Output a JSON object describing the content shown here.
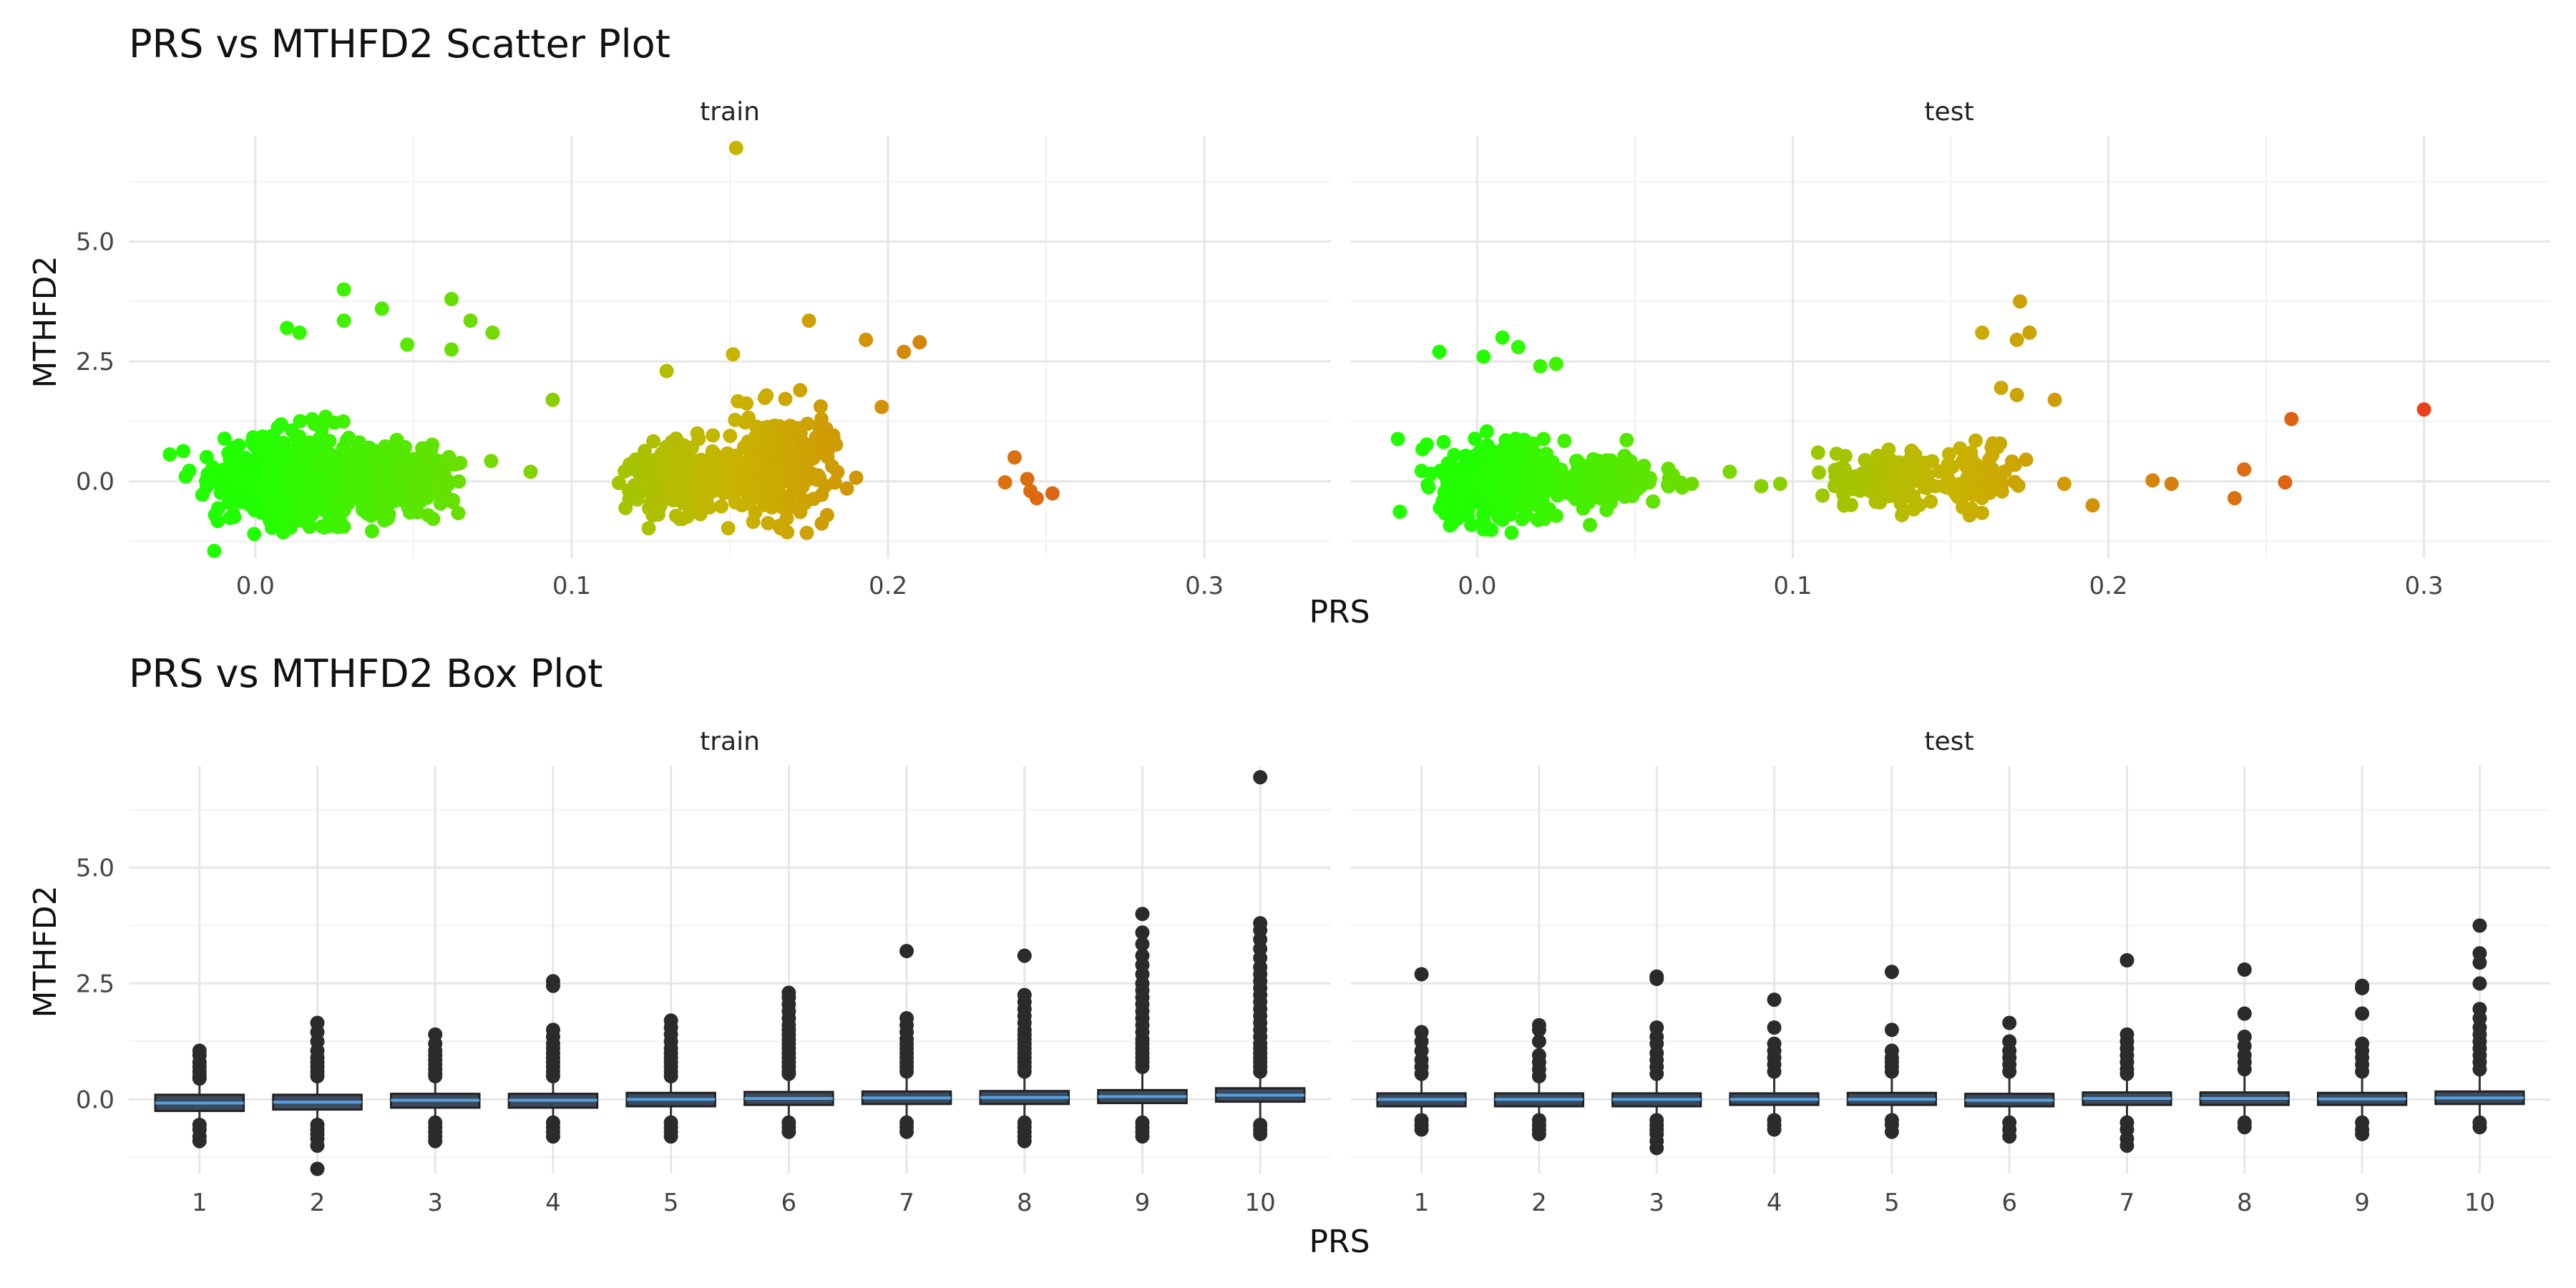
{
  "chart_data": [
    {
      "type": "scatter",
      "title": "PRS vs MTHFD2 Scatter Plot",
      "xlabel": "PRS",
      "ylabel": "MTHFD2",
      "xlim": [
        -0.04,
        0.34
      ],
      "ylim": [
        -1.6,
        7.2
      ],
      "x_ticks": [
        0.0,
        0.1,
        0.2,
        0.3
      ],
      "x_tick_labels": [
        "0.0",
        "0.1",
        "0.2",
        "0.3"
      ],
      "y_ticks": [
        0.0,
        2.5,
        5.0
      ],
      "y_tick_labels": [
        "0.0",
        "2.5",
        "5.0"
      ],
      "grid": true,
      "legend": "none",
      "color_scale": {
        "low": "#22ff00",
        "mid": "#c8b400",
        "high": "#e8421a",
        "range": [
          0.0,
          0.3
        ],
        "mapped_to": "PRS"
      },
      "facets": [
        {
          "label": "train",
          "clusters": [
            {
              "x_center": 0.015,
              "x_spread": 0.018,
              "y_center": 0.0,
              "y_spread": 0.45,
              "n": 700
            },
            {
              "x_center": 0.045,
              "x_spread": 0.012,
              "y_center": 0.05,
              "y_spread": 0.3,
              "n": 280
            },
            {
              "x_center": 0.135,
              "x_spread": 0.012,
              "y_center": 0.05,
              "y_spread": 0.35,
              "n": 260
            },
            {
              "x_center": 0.165,
              "x_spread": 0.012,
              "y_center": 0.3,
              "y_spread": 0.55,
              "n": 260
            }
          ],
          "points": [
            {
              "x": 0.152,
              "y": 6.95
            },
            {
              "x": 0.028,
              "y": 4.0
            },
            {
              "x": 0.04,
              "y": 3.6
            },
            {
              "x": 0.062,
              "y": 3.8
            },
            {
              "x": 0.068,
              "y": 3.35
            },
            {
              "x": 0.075,
              "y": 3.1
            },
            {
              "x": 0.01,
              "y": 3.2
            },
            {
              "x": 0.014,
              "y": 3.1
            },
            {
              "x": 0.028,
              "y": 3.35
            },
            {
              "x": 0.048,
              "y": 2.85
            },
            {
              "x": 0.062,
              "y": 2.75
            },
            {
              "x": 0.094,
              "y": 1.7
            },
            {
              "x": 0.175,
              "y": 3.35
            },
            {
              "x": 0.193,
              "y": 2.95
            },
            {
              "x": 0.21,
              "y": 2.9
            },
            {
              "x": 0.205,
              "y": 2.7
            },
            {
              "x": 0.198,
              "y": 1.55
            },
            {
              "x": 0.187,
              "y": -0.15
            },
            {
              "x": 0.151,
              "y": 2.65
            },
            {
              "x": 0.13,
              "y": 2.3
            },
            {
              "x": -0.013,
              "y": -1.45
            },
            {
              "x": -0.022,
              "y": 0.1
            },
            {
              "x": 0.087,
              "y": 0.2
            },
            {
              "x": 0.24,
              "y": 0.5
            },
            {
              "x": 0.237,
              "y": -0.02
            },
            {
              "x": 0.244,
              "y": 0.05
            },
            {
              "x": 0.245,
              "y": -0.2
            },
            {
              "x": 0.247,
              "y": -0.35
            },
            {
              "x": 0.252,
              "y": -0.25
            }
          ]
        },
        {
          "label": "test",
          "clusters": [
            {
              "x_center": 0.008,
              "x_spread": 0.014,
              "y_center": 0.0,
              "y_spread": 0.42,
              "n": 420
            },
            {
              "x_center": 0.04,
              "x_spread": 0.012,
              "y_center": 0.02,
              "y_spread": 0.22,
              "n": 170
            },
            {
              "x_center": 0.13,
              "x_spread": 0.011,
              "y_center": 0.05,
              "y_spread": 0.3,
              "n": 150
            },
            {
              "x_center": 0.16,
              "x_spread": 0.008,
              "y_center": 0.1,
              "y_spread": 0.4,
              "n": 60
            }
          ],
          "points": [
            {
              "x": -0.012,
              "y": 2.7
            },
            {
              "x": 0.002,
              "y": 2.6
            },
            {
              "x": 0.008,
              "y": 3.0
            },
            {
              "x": 0.013,
              "y": 2.8
            },
            {
              "x": 0.02,
              "y": 2.4
            },
            {
              "x": 0.025,
              "y": 2.45
            },
            {
              "x": 0.172,
              "y": 3.75
            },
            {
              "x": 0.175,
              "y": 3.1
            },
            {
              "x": 0.16,
              "y": 3.1
            },
            {
              "x": 0.171,
              "y": 2.95
            },
            {
              "x": 0.166,
              "y": 1.95
            },
            {
              "x": 0.171,
              "y": 1.8
            },
            {
              "x": 0.183,
              "y": 1.7
            },
            {
              "x": 0.08,
              "y": 0.2
            },
            {
              "x": 0.096,
              "y": -0.05
            },
            {
              "x": 0.09,
              "y": -0.1
            },
            {
              "x": 0.068,
              "y": -0.05
            },
            {
              "x": 0.108,
              "y": 0.6
            },
            {
              "x": 0.195,
              "y": -0.5
            },
            {
              "x": 0.186,
              "y": -0.05
            },
            {
              "x": 0.214,
              "y": 0.02
            },
            {
              "x": 0.22,
              "y": -0.05
            },
            {
              "x": 0.24,
              "y": -0.35
            },
            {
              "x": 0.243,
              "y": 0.25
            },
            {
              "x": 0.256,
              "y": -0.02
            },
            {
              "x": 0.258,
              "y": 1.3
            },
            {
              "x": 0.3,
              "y": 1.5
            },
            {
              "x": 0.002,
              "y": -1.0
            },
            {
              "x": 0.008,
              "y": -0.8
            }
          ]
        }
      ]
    },
    {
      "type": "box",
      "title": "PRS vs MTHFD2 Box Plot",
      "xlabel": "PRS",
      "ylabel": "MTHFD2",
      "ylim": [
        -1.6,
        7.2
      ],
      "y_ticks": [
        0.0,
        2.5,
        5.0
      ],
      "y_tick_labels": [
        "0.0",
        "2.5",
        "5.0"
      ],
      "categories": [
        "1",
        "2",
        "3",
        "4",
        "5",
        "6",
        "7",
        "8",
        "9",
        "10"
      ],
      "grid": true,
      "legend": "none",
      "box_fill": "#3b4a5c",
      "median_color": "#56a0e0",
      "outlier_color": "#2b2b2b",
      "facets": [
        {
          "label": "train",
          "boxes": [
            {
              "q1": -0.25,
              "median": -0.08,
              "q3": 0.1,
              "outliers": [
                1.05,
                0.95,
                0.8,
                0.7,
                0.6,
                0.5,
                0.45,
                -0.55,
                -0.65,
                -0.8,
                -0.9
              ]
            },
            {
              "q1": -0.22,
              "median": -0.06,
              "q3": 0.1,
              "outliers": [
                1.65,
                1.45,
                1.25,
                1.05,
                0.9,
                0.8,
                0.7,
                0.6,
                0.5,
                -0.55,
                -0.65,
                -0.75,
                -0.85,
                -1.0,
                -1.5
              ]
            },
            {
              "q1": -0.18,
              "median": -0.02,
              "q3": 0.12,
              "outliers": [
                1.4,
                1.2,
                1.05,
                0.95,
                0.85,
                0.75,
                0.65,
                0.55,
                0.5,
                -0.5,
                -0.6,
                -0.7,
                -0.8,
                -0.9
              ]
            },
            {
              "q1": -0.18,
              "median": -0.02,
              "q3": 0.12,
              "outliers": [
                2.55,
                2.45,
                1.5,
                1.35,
                1.2,
                1.1,
                1.0,
                0.9,
                0.8,
                0.7,
                0.6,
                0.5,
                -0.5,
                -0.6,
                -0.7,
                -0.8
              ]
            },
            {
              "q1": -0.15,
              "median": 0.0,
              "q3": 0.14,
              "outliers": [
                1.7,
                1.55,
                1.4,
                1.25,
                1.1,
                1.0,
                0.9,
                0.8,
                0.7,
                0.6,
                0.5,
                -0.5,
                -0.6,
                -0.7,
                -0.8
              ]
            },
            {
              "q1": -0.12,
              "median": 0.02,
              "q3": 0.16,
              "outliers": [
                2.3,
                2.2,
                2.05,
                1.9,
                1.75,
                1.6,
                1.5,
                1.4,
                1.3,
                1.2,
                1.1,
                1.0,
                0.9,
                0.8,
                0.7,
                0.6,
                0.55,
                -0.5,
                -0.6,
                -0.7
              ]
            },
            {
              "q1": -0.1,
              "median": 0.03,
              "q3": 0.17,
              "outliers": [
                3.2,
                1.75,
                1.6,
                1.45,
                1.3,
                1.2,
                1.1,
                1.0,
                0.9,
                0.8,
                0.7,
                0.6,
                -0.5,
                -0.6,
                -0.7
              ]
            },
            {
              "q1": -0.1,
              "median": 0.04,
              "q3": 0.18,
              "outliers": [
                3.1,
                2.25,
                2.1,
                1.95,
                1.8,
                1.65,
                1.5,
                1.4,
                1.3,
                1.2,
                1.1,
                1.0,
                0.9,
                0.8,
                0.7,
                0.6,
                -0.5,
                -0.6,
                -0.7,
                -0.8,
                -0.9
              ]
            },
            {
              "q1": -0.08,
              "median": 0.06,
              "q3": 0.2,
              "outliers": [
                4.0,
                3.6,
                3.35,
                3.1,
                2.9,
                2.7,
                2.5,
                2.35,
                2.2,
                2.05,
                1.9,
                1.75,
                1.6,
                1.45,
                1.3,
                1.2,
                1.1,
                1.0,
                0.9,
                0.8,
                0.7,
                -0.5,
                -0.6,
                -0.7,
                -0.8
              ]
            },
            {
              "q1": -0.05,
              "median": 0.09,
              "q3": 0.24,
              "outliers": [
                6.95,
                3.8,
                3.65,
                3.45,
                3.25,
                3.05,
                2.85,
                2.7,
                2.55,
                2.4,
                2.25,
                2.1,
                1.95,
                1.8,
                1.65,
                1.5,
                1.35,
                1.2,
                1.1,
                1.0,
                0.9,
                0.8,
                0.7,
                0.6,
                -0.55,
                -0.65,
                -0.75
              ]
            }
          ]
        },
        {
          "label": "test",
          "boxes": [
            {
              "q1": -0.15,
              "median": 0.0,
              "q3": 0.13,
              "outliers": [
                2.7,
                1.45,
                1.25,
                1.05,
                0.85,
                0.7,
                0.55,
                -0.45,
                -0.55,
                -0.65
              ]
            },
            {
              "q1": -0.15,
              "median": 0.0,
              "q3": 0.13,
              "outliers": [
                1.6,
                1.5,
                1.25,
                0.95,
                0.8,
                0.65,
                0.5,
                -0.45,
                -0.55,
                -0.65,
                -0.75
              ]
            },
            {
              "q1": -0.15,
              "median": 0.0,
              "q3": 0.13,
              "outliers": [
                2.65,
                2.6,
                1.55,
                1.35,
                1.2,
                1.0,
                0.85,
                0.7,
                0.55,
                -0.45,
                -0.55,
                -0.65,
                -0.75,
                -0.9,
                -1.05
              ]
            },
            {
              "q1": -0.12,
              "median": 0.0,
              "q3": 0.13,
              "outliers": [
                2.15,
                1.55,
                1.2,
                1.05,
                0.9,
                0.75,
                0.6,
                -0.45,
                -0.55,
                -0.65
              ]
            },
            {
              "q1": -0.12,
              "median": 0.0,
              "q3": 0.14,
              "outliers": [
                2.75,
                1.5,
                1.05,
                0.9,
                0.8,
                0.7,
                0.6,
                -0.45,
                -0.55,
                -0.7
              ]
            },
            {
              "q1": -0.15,
              "median": -0.02,
              "q3": 0.12,
              "outliers": [
                1.65,
                1.25,
                1.05,
                0.9,
                0.75,
                0.6,
                -0.5,
                -0.65,
                -0.8
              ]
            },
            {
              "q1": -0.12,
              "median": 0.02,
              "q3": 0.15,
              "outliers": [
                3.0,
                1.4,
                1.25,
                1.1,
                0.95,
                0.8,
                0.65,
                0.55,
                -0.5,
                -0.65,
                -0.85,
                -1.0
              ]
            },
            {
              "q1": -0.12,
              "median": 0.02,
              "q3": 0.15,
              "outliers": [
                2.8,
                1.85,
                1.35,
                1.15,
                0.95,
                0.8,
                0.65,
                -0.5,
                -0.6
              ]
            },
            {
              "q1": -0.12,
              "median": 0.01,
              "q3": 0.14,
              "outliers": [
                2.45,
                2.4,
                1.85,
                1.2,
                1.05,
                0.9,
                0.75,
                0.6,
                -0.5,
                -0.65,
                -0.75
              ]
            },
            {
              "q1": -0.1,
              "median": 0.03,
              "q3": 0.17,
              "outliers": [
                3.75,
                3.15,
                2.95,
                2.5,
                1.95,
                1.75,
                1.55,
                1.4,
                1.25,
                1.1,
                0.95,
                0.8,
                0.65,
                -0.5,
                -0.6
              ]
            }
          ]
        }
      ]
    }
  ]
}
